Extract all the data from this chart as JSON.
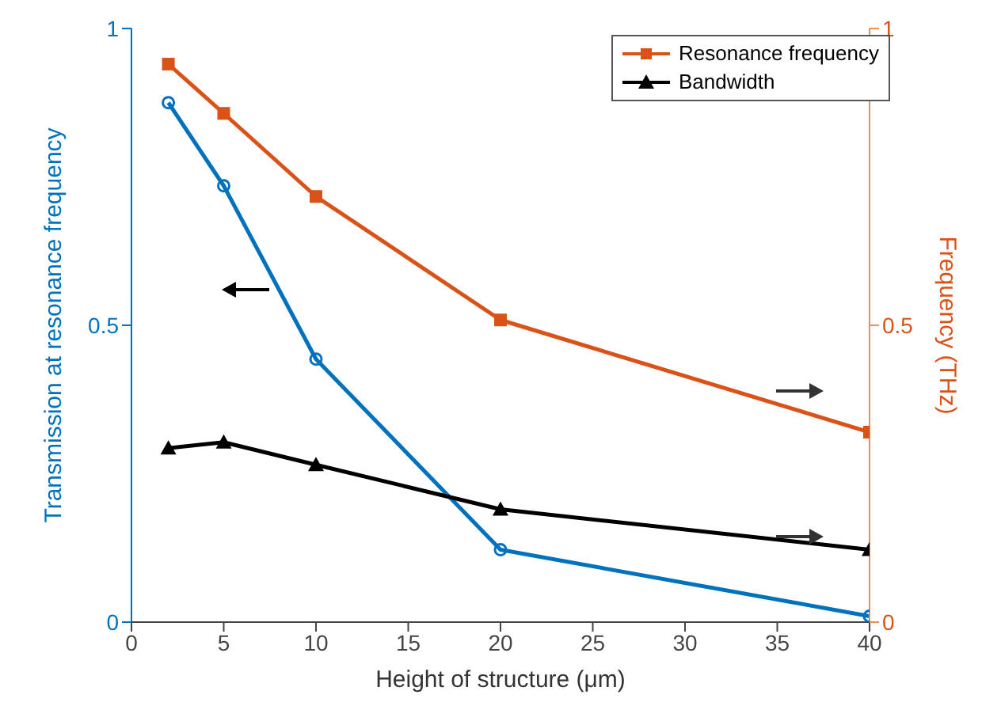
{
  "chart_data": {
    "type": "line",
    "xlabel": "Height of structure (μm)",
    "ylabel": "Transmission at resonance frequency",
    "y2label": "Frequency (THz)",
    "x": [
      2,
      5,
      10,
      20,
      40
    ],
    "series": [
      {
        "color": "#0072bd",
        "marker": "circle",
        "values": [
          0.875,
          0.735,
          0.443,
          0.122,
          0.01
        ]
      },
      {
        "name": "Resonance frequency",
        "color": "#d95319",
        "marker": "square",
        "axis": "y2",
        "values": [
          0.94,
          0.857,
          0.717,
          0.509,
          0.32
        ]
      },
      {
        "name": "Bandwidth",
        "color": "#000000",
        "marker": "triangle",
        "axis": "y2",
        "values": [
          0.293,
          0.303,
          0.265,
          0.19,
          0.122
        ]
      }
    ],
    "xlim": [
      0,
      40
    ],
    "xticks": [
      0,
      5,
      10,
      15,
      20,
      25,
      30,
      35,
      40
    ],
    "ylim": [
      0,
      1
    ],
    "yticks": [
      0,
      0.5,
      1
    ],
    "y2lim": [
      0,
      1
    ],
    "y2ticks": [
      0,
      0.5,
      1
    ],
    "grid": false,
    "legend": "top right",
    "line_style": "solid"
  }
}
